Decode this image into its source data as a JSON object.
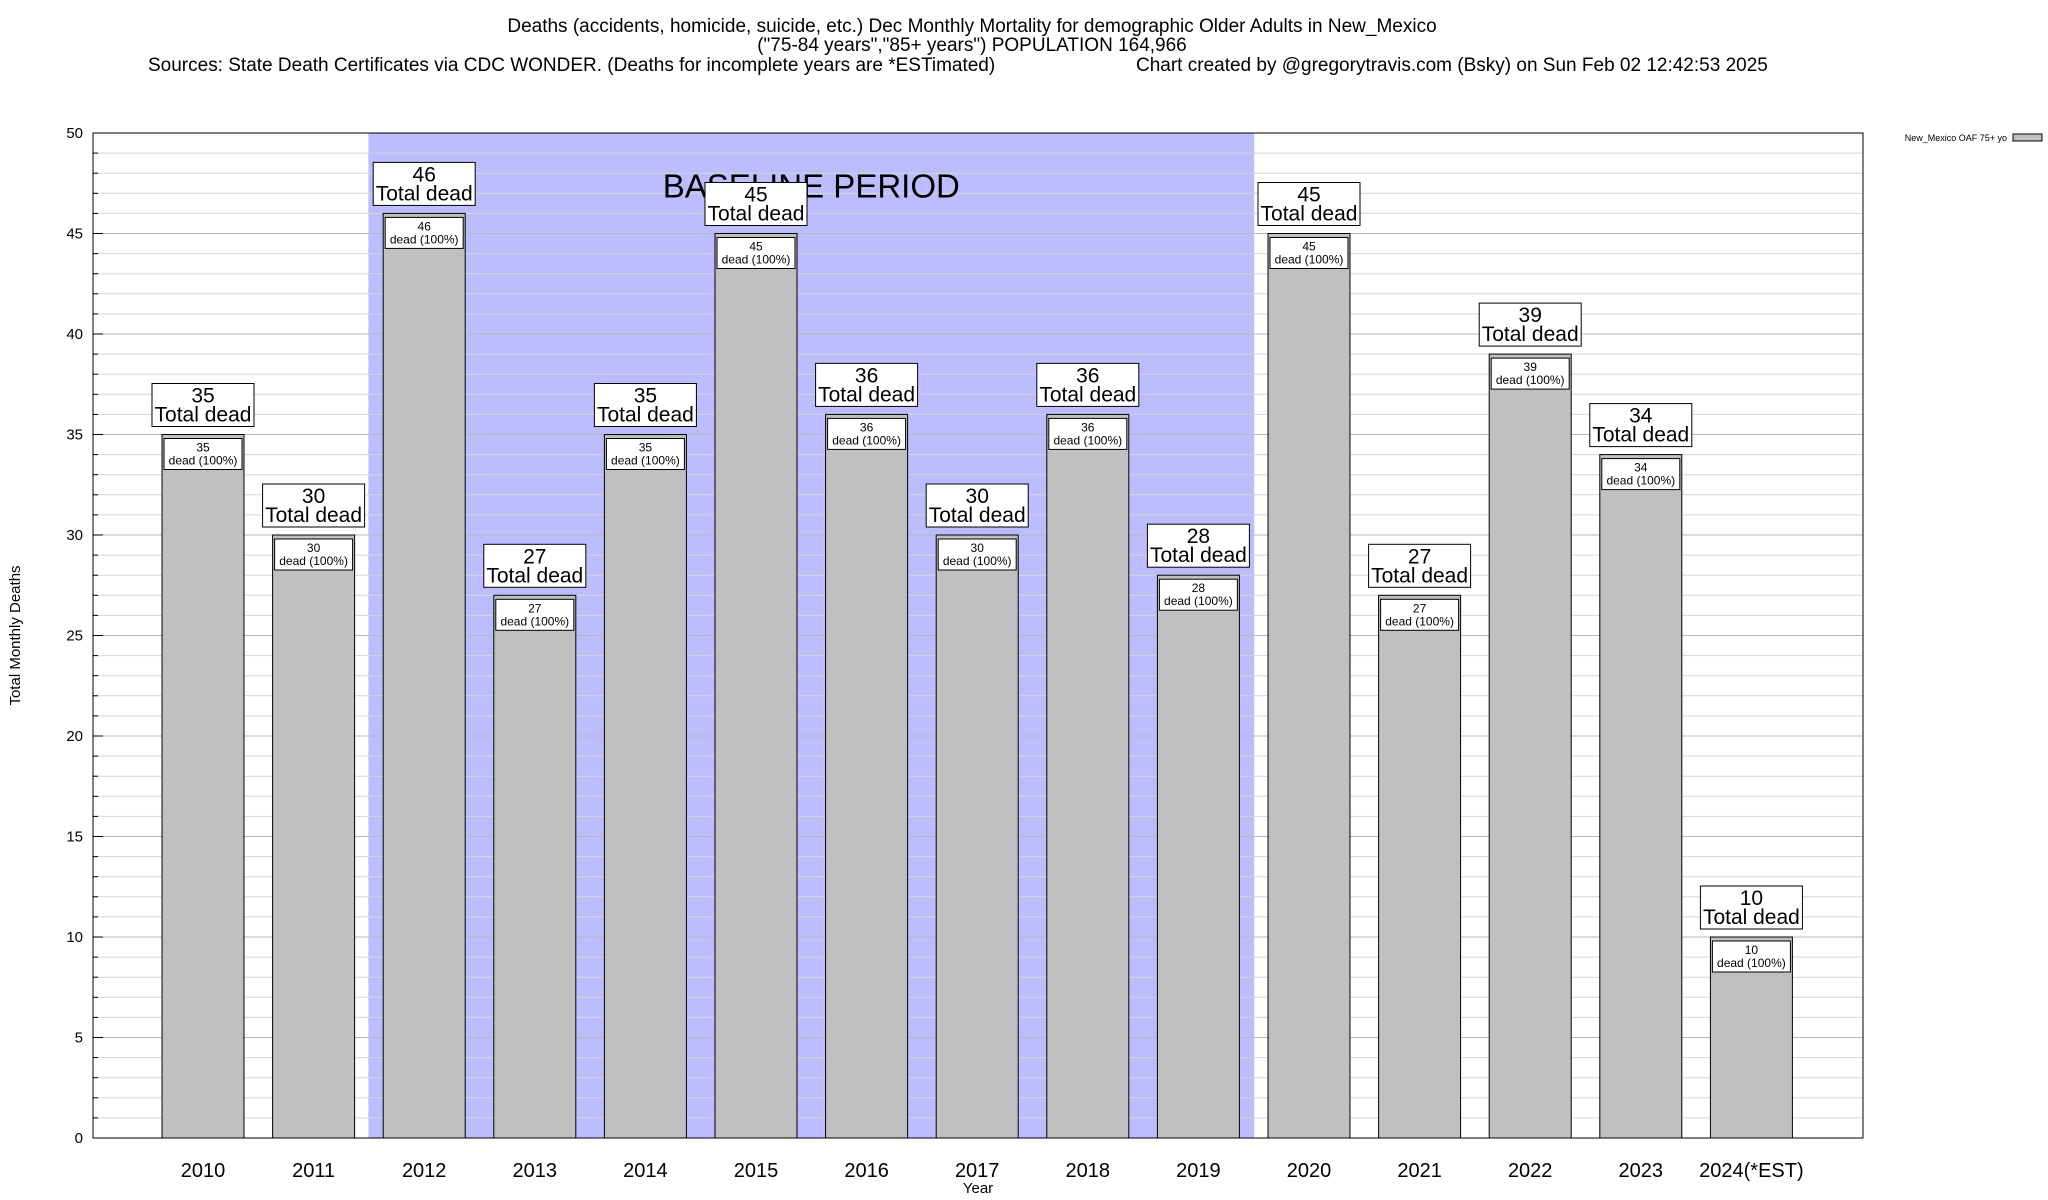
{
  "chart_data": {
    "type": "bar",
    "title_lines": [
      "Deaths (accidents, homicide, suicide, etc.) Dec Monthly Mortality for demographic Older Adults in New_Mexico",
      "(\"75-84 years\",\"85+ years\") POPULATION 164,966"
    ],
    "sources": "Sources: State Death Certificates via CDC WONDER. (Deaths for incomplete years are *ESTimated)",
    "credit": "Chart created by @gregorytravis.com (Bsky) on Sun Feb 02 12:42:53 2025",
    "xlabel": "Year",
    "ylabel": "Total Monthly Deaths",
    "ylim": [
      0,
      50
    ],
    "yticks": [
      0,
      5,
      10,
      15,
      20,
      25,
      30,
      35,
      40,
      45,
      50
    ],
    "minor_tick_step": 1,
    "grid": true,
    "categories": [
      "2010",
      "2011",
      "2012",
      "2013",
      "2014",
      "2015",
      "2016",
      "2017",
      "2018",
      "2019",
      "2020",
      "2021",
      "2022",
      "2023",
      "2024(*EST)"
    ],
    "values": [
      35,
      30,
      46,
      27,
      35,
      45,
      36,
      30,
      36,
      28,
      45,
      27,
      39,
      34,
      10
    ],
    "bar_top_label": "Total dead",
    "bar_inner_label": "dead (100%)",
    "baseline_period": {
      "label": "BASELINE PERIOD",
      "start": "2012",
      "end": "2019",
      "color": "#bcbcff"
    },
    "legend": {
      "entry": "New_Mexico OAF 75+ yo",
      "placement": "top-right"
    },
    "bar_color": "#c0c0c0"
  }
}
